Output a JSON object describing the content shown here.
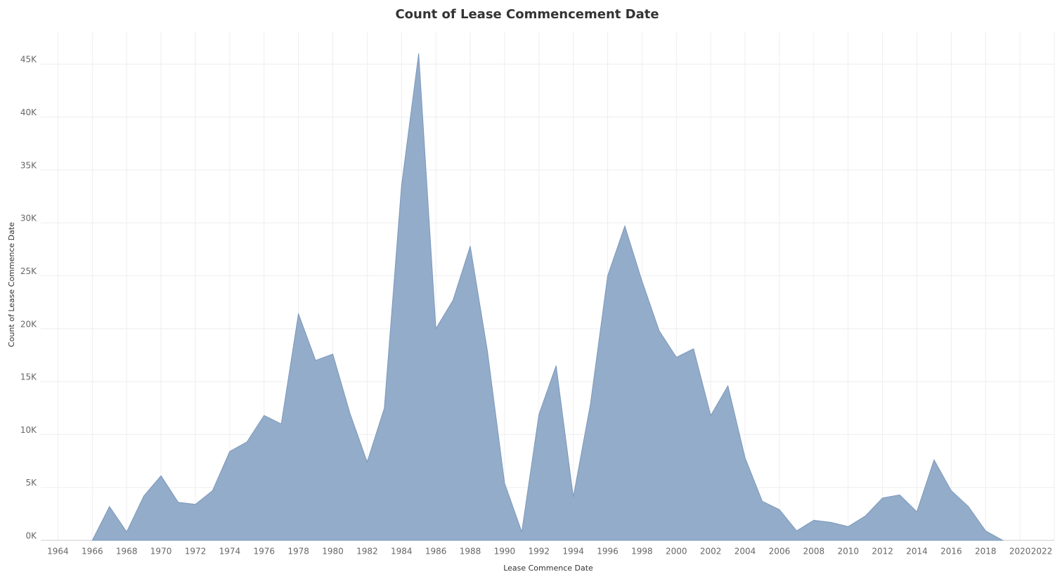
{
  "chart_data": {
    "type": "area",
    "title": "Count of Lease Commencement Date",
    "x_label": "Lease Commence Date",
    "y_label": "Count of Lease Commence Date",
    "x": [
      1966,
      1967,
      1968,
      1969,
      1970,
      1971,
      1972,
      1973,
      1974,
      1975,
      1976,
      1977,
      1978,
      1979,
      1980,
      1981,
      1982,
      1983,
      1984,
      1985,
      1986,
      1987,
      1988,
      1989,
      1990,
      1991,
      1992,
      1993,
      1994,
      1995,
      1996,
      1997,
      1998,
      1999,
      2000,
      2001,
      2002,
      2003,
      2004,
      2005,
      2006,
      2007,
      2008,
      2009,
      2010,
      2011,
      2012,
      2013,
      2014,
      2015,
      2016,
      2017,
      2018,
      2019
    ],
    "values": [
      0,
      3200,
      800,
      4200,
      6100,
      3600,
      3400,
      4700,
      8400,
      9300,
      11800,
      11000,
      21400,
      17000,
      17600,
      12000,
      7400,
      12500,
      33500,
      46000,
      20000,
      22700,
      27800,
      17900,
      5400,
      800,
      11900,
      16500,
      4100,
      12900,
      25000,
      29700,
      24500,
      19800,
      17300,
      18100,
      11800,
      14600,
      7800,
      3700,
      2900,
      900,
      1900,
      1700,
      1300,
      2300,
      4000,
      4300,
      2700,
      7600,
      4700,
      3200,
      900,
      0
    ],
    "color": "#93acc9",
    "xlim": [
      1963,
      2022
    ],
    "xticks": [
      1964,
      1966,
      1968,
      1970,
      1972,
      1974,
      1976,
      1978,
      1980,
      1982,
      1984,
      1986,
      1988,
      1990,
      1992,
      1994,
      1996,
      1998,
      2000,
      2002,
      2004,
      2006,
      2008,
      2010,
      2012,
      2014,
      2016,
      2018,
      2020,
      2022
    ],
    "ylim": [
      0,
      48000
    ],
    "yticks": [
      {
        "value": 0,
        "label": "0K"
      },
      {
        "value": 5000,
        "label": "5K"
      },
      {
        "value": 10000,
        "label": "10K"
      },
      {
        "value": 15000,
        "label": "15K"
      },
      {
        "value": 20000,
        "label": "20K"
      },
      {
        "value": 25000,
        "label": "25K"
      },
      {
        "value": 30000,
        "label": "30K"
      },
      {
        "value": 35000,
        "label": "35K"
      },
      {
        "value": 40000,
        "label": "40K"
      },
      {
        "value": 45000,
        "label": "45K"
      }
    ],
    "grid": true
  }
}
